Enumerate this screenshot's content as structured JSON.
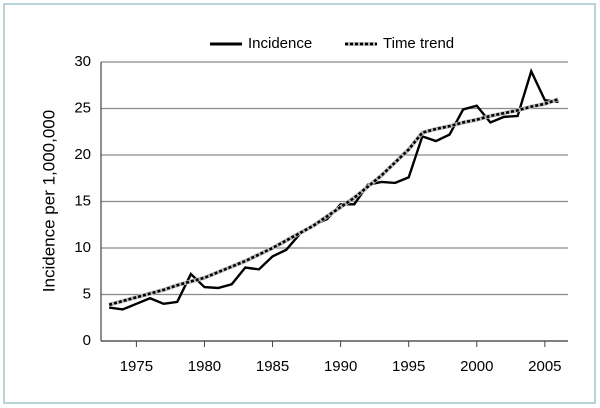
{
  "chart_data": {
    "type": "line",
    "y_label": "Incidence per 1,000,000",
    "x": [
      1973,
      1974,
      1975,
      1976,
      1977,
      1978,
      1979,
      1980,
      1981,
      1982,
      1983,
      1984,
      1985,
      1986,
      1987,
      1988,
      1989,
      1990,
      1991,
      1992,
      1993,
      1994,
      1995,
      1996,
      1997,
      1998,
      1999,
      2000,
      2001,
      2002,
      2003,
      2004,
      2005,
      2006
    ],
    "series": [
      {
        "name": "Incidence",
        "color": "#000000",
        "values": [
          3.6,
          3.4,
          4.0,
          4.6,
          4.0,
          4.2,
          7.2,
          5.8,
          5.7,
          6.1,
          7.9,
          7.7,
          9.1,
          9.8,
          11.5,
          12.5,
          13.1,
          14.7,
          14.7,
          16.8,
          17.1,
          17.0,
          17.6,
          22.0,
          21.5,
          22.2,
          24.9,
          25.3,
          23.5,
          24.1,
          24.2,
          29.0,
          25.9,
          25.7
        ]
      },
      {
        "name": "Time trend",
        "color": "#000000",
        "values": [
          3.9,
          4.3,
          4.7,
          5.1,
          5.5,
          6.0,
          6.4,
          6.8,
          7.4,
          8.0,
          8.6,
          9.3,
          10.0,
          10.8,
          11.6,
          12.4,
          13.4,
          14.4,
          15.4,
          16.6,
          17.8,
          19.2,
          20.6,
          22.4,
          22.8,
          23.1,
          23.5,
          23.8,
          24.2,
          24.5,
          24.8,
          25.2,
          25.5,
          26.0
        ]
      }
    ],
    "xlim": [
      1972.4,
      2006.7
    ],
    "xticks": [
      1975,
      1980,
      1985,
      1990,
      1995,
      2000,
      2005
    ],
    "ylim": [
      0,
      30
    ],
    "yticks": [
      0,
      5,
      10,
      15,
      20,
      25,
      30
    ],
    "grid": true
  }
}
